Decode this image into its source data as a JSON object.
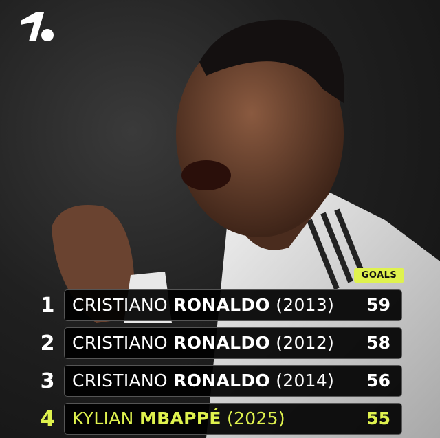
{
  "brand": {
    "logo": "1.",
    "accent": "#dff24e"
  },
  "table": {
    "column_label": "GOALS",
    "rows": [
      {
        "rank": "1",
        "first": "CRISTIANO",
        "last": "RONALDO",
        "year": "(2013)",
        "goals": "59",
        "highlight": false
      },
      {
        "rank": "2",
        "first": "CRISTIANO",
        "last": "RONALDO",
        "year": "(2012)",
        "goals": "58",
        "highlight": false
      },
      {
        "rank": "3",
        "first": "CRISTIANO",
        "last": "RONALDO",
        "year": "(2014)",
        "goals": "56",
        "highlight": false
      },
      {
        "rank": "4",
        "first": "KYLIAN",
        "last": "MBAPPÉ",
        "year": "(2025)",
        "goals": "55",
        "highlight": true
      }
    ]
  }
}
